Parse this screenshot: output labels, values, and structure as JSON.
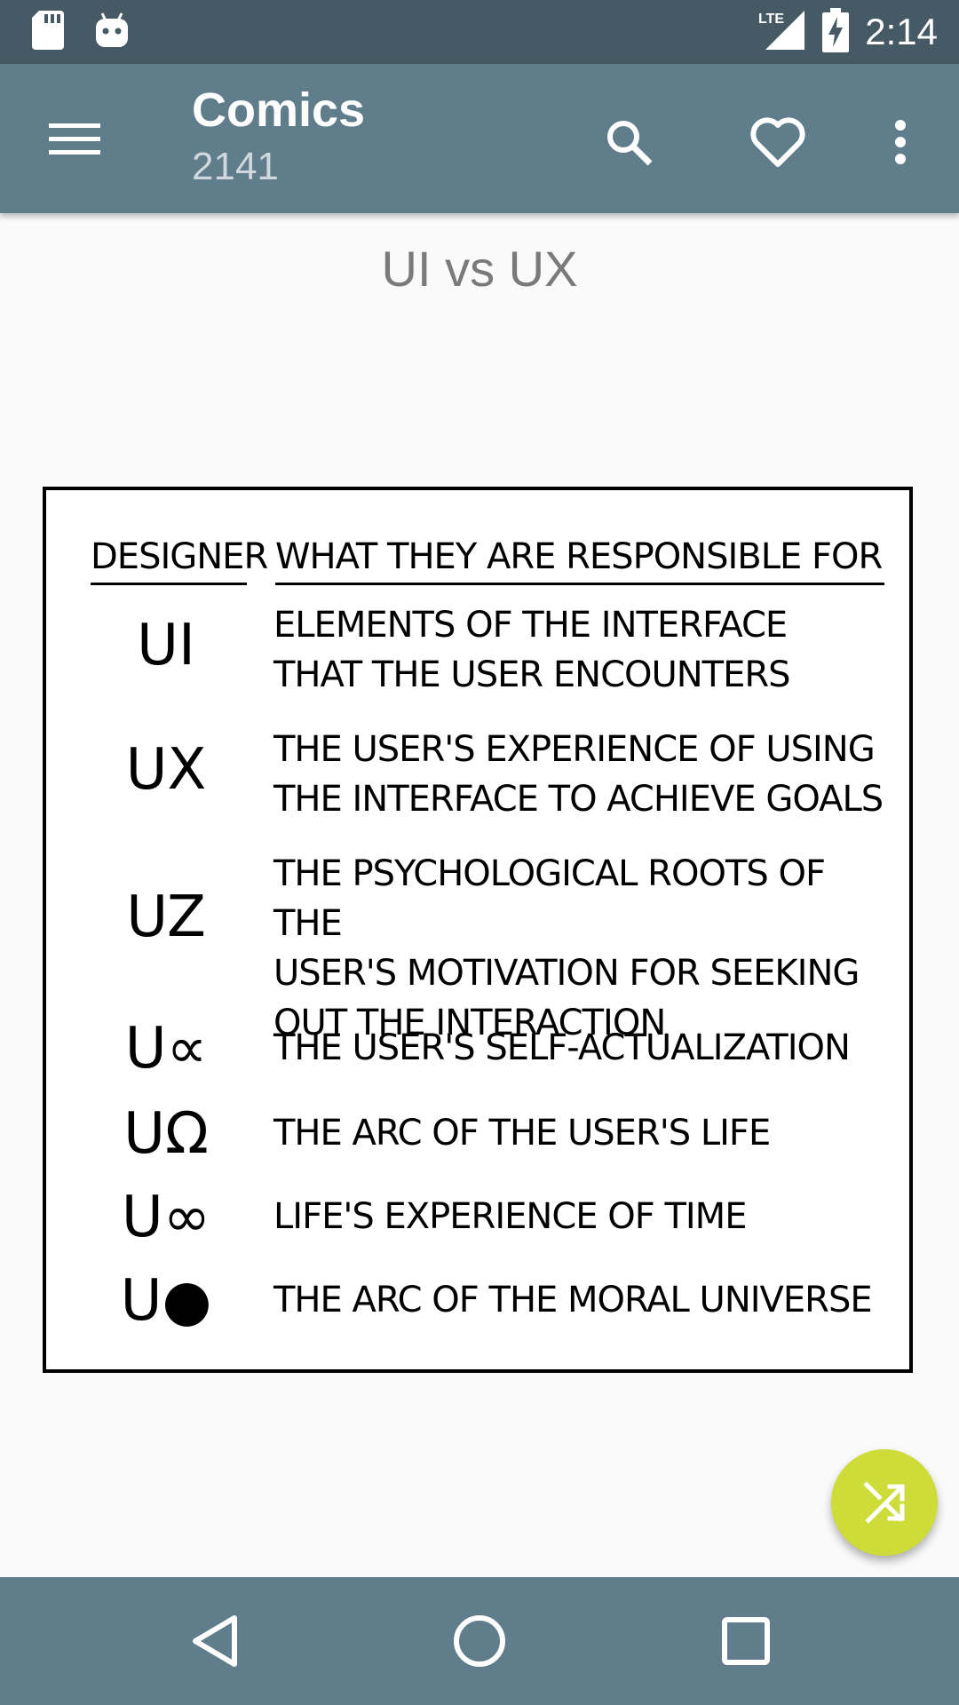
{
  "status_bar": {
    "time": "2:14",
    "network_label": "LTE",
    "icons": [
      "sd-card-icon",
      "android-debug-icon",
      "lte-signal-icon",
      "battery-charging-icon"
    ]
  },
  "toolbar": {
    "title": "Comics",
    "subtitle": "2141",
    "icons": [
      "menu-icon",
      "search-icon",
      "heart-icon",
      "more-vert-icon"
    ]
  },
  "comic": {
    "title": "UI vs UX",
    "header": {
      "designer": "DESIGNER",
      "responsibility": "WHAT THEY ARE RESPONSIBLE FOR"
    },
    "rows": [
      {
        "designer": "UI",
        "lines": [
          "ELEMENTS OF THE INTERFACE",
          "THAT THE USER ENCOUNTERS"
        ]
      },
      {
        "designer": "UX",
        "lines": [
          "THE USER'S EXPERIENCE OF USING",
          "THE INTERFACE TO ACHIEVE GOALS"
        ]
      },
      {
        "designer": "UZ",
        "lines": [
          "THE PSYCHOLOGICAL ROOTS OF THE",
          "USER'S MOTIVATION FOR SEEKING",
          "OUT THE INTERACTION"
        ]
      },
      {
        "designer": "U∝",
        "lines": [
          "THE USER'S SELF-ACTUALIZATION"
        ]
      },
      {
        "designer": "UΩ",
        "lines": [
          "THE ARC OF THE USER'S LIFE"
        ]
      },
      {
        "designer": "U∞",
        "lines": [
          "LIFE'S EXPERIENCE OF TIME"
        ]
      },
      {
        "designer": "U●",
        "lines": [
          "THE ARC OF THE MORAL UNIVERSE"
        ]
      }
    ]
  },
  "fab": {
    "icon": "shuffle-icon",
    "color": "#cddc39"
  },
  "nav_bar": {
    "icons": [
      "back-icon",
      "home-icon",
      "recents-icon"
    ]
  },
  "colors": {
    "status_bar": "#455a64",
    "toolbar": "#607d8b",
    "background": "#fafafa"
  }
}
